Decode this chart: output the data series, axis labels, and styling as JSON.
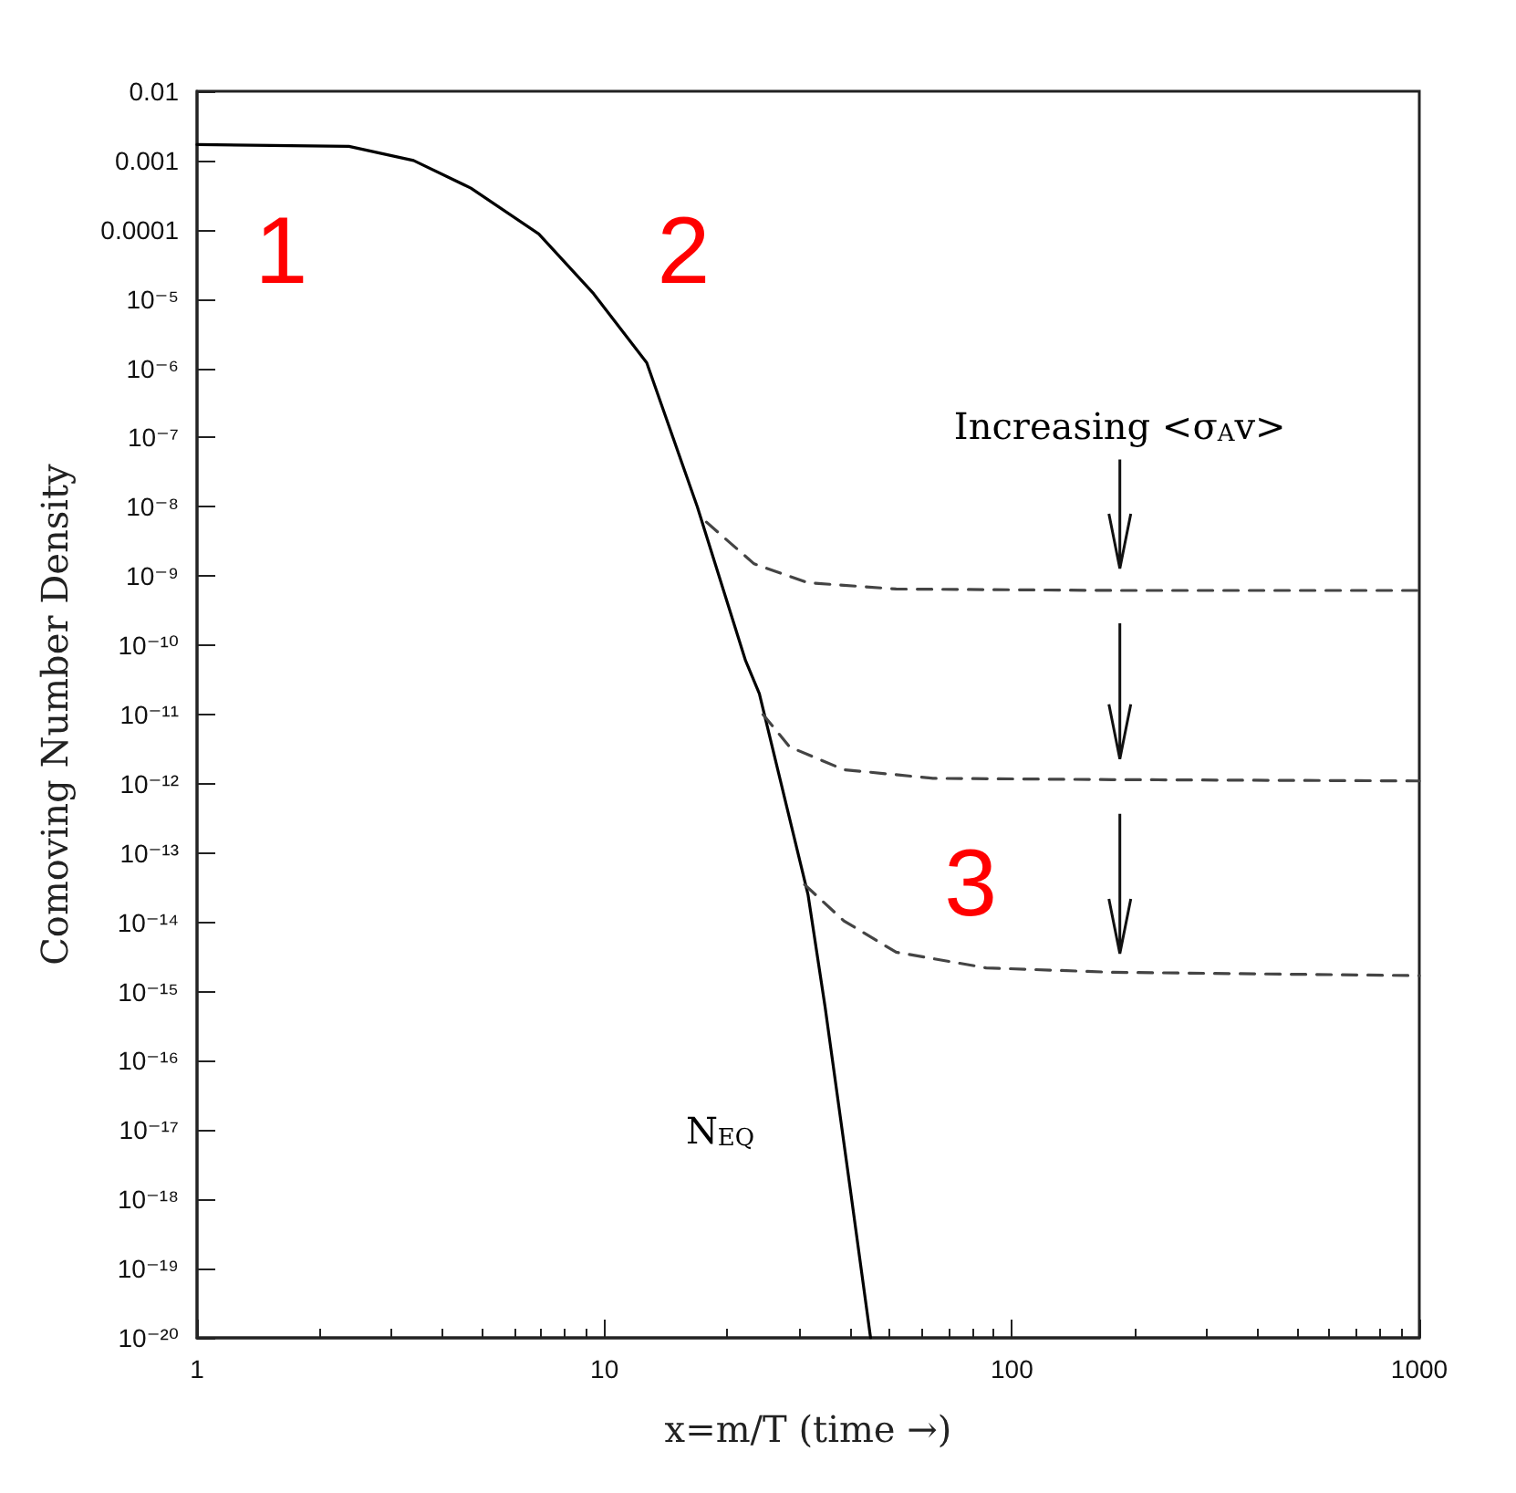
{
  "chart_data": {
    "type": "line",
    "xlabel": "x=m/T (time →)",
    "ylabel": "Comoving Number Density",
    "log": "xy",
    "xlim": [
      1,
      1000
    ],
    "xticks": [
      1,
      10,
      100,
      1000
    ],
    "ylim": [
      1e-20,
      0.01
    ],
    "yticks": [
      0.01,
      0.001,
      0.0001,
      {
        "value": 1e-05,
        "label": "10⁻⁵"
      },
      {
        "value": 1e-06,
        "label": "10⁻⁶"
      },
      {
        "value": 1e-07,
        "label": "10⁻⁷"
      },
      {
        "value": 1e-08,
        "label": "10⁻⁸"
      },
      {
        "value": 1e-09,
        "label": "10⁻⁹"
      },
      {
        "value": 1e-10,
        "label": "10⁻¹⁰"
      },
      {
        "value": 1e-11,
        "label": "10⁻¹¹"
      },
      {
        "value": 1e-12,
        "label": "10⁻¹²"
      },
      {
        "value": 1e-13,
        "label": "10⁻¹³"
      },
      {
        "value": 1e-14,
        "label": "10⁻¹⁴"
      },
      {
        "value": 1e-15,
        "label": "10⁻¹⁵"
      },
      {
        "value": 1e-16,
        "label": "10⁻¹⁶"
      },
      {
        "value": 1e-17,
        "label": "10⁻¹⁷"
      },
      {
        "value": 1e-18,
        "label": "10⁻¹⁸"
      },
      {
        "value": 1e-19,
        "label": "10⁻¹⁹"
      },
      {
        "value": 1e-20,
        "label": "10⁻²⁰"
      }
    ],
    "grid": false,
    "marker": "none",
    "series": [
      {
        "color": "#000000",
        "line_style": "solid",
        "x": [
          1,
          2.36,
          3.4,
          4.7,
          6.9,
          9.4,
          12.7,
          16.9,
          22.2,
          24,
          31.6,
          34.8,
          40,
          45
        ],
        "values": [
          0.0017,
          0.0016,
          0.001,
          0.0004,
          8.7e-05,
          1.2e-05,
          1.2e-06,
          1e-08,
          6e-11,
          2e-11,
          2.5e-14,
          6e-16,
          1.6e-18,
          1e-20
        ]
      },
      {
        "color": "#444444",
        "line_style": "dashed",
        "x": [
          17.8,
          23.3,
          31.6,
          52,
          176,
          1000
        ],
        "values": [
          6e-09,
          1.5e-09,
          8e-10,
          6.5e-10,
          6.2e-10,
          6.2e-10
        ]
      },
      {
        "color": "#444444",
        "line_style": "dashed",
        "x": [
          24.5,
          28.5,
          38.7,
          64,
          176,
          1000
        ],
        "values": [
          1e-11,
          3.4e-12,
          1.6e-12,
          1.2e-12,
          1.15e-12,
          1.1e-12
        ]
      },
      {
        "color": "#444444",
        "line_style": "dashed",
        "x": [
          31,
          38.7,
          52,
          86.5,
          176,
          1000
        ],
        "values": [
          3.5e-14,
          1.05e-14,
          3.7e-15,
          2.2e-15,
          1.9e-15,
          1.7e-15
        ]
      }
    ],
    "annotations": [
      "1",
      "2",
      "3",
      "Increasing <σ$_{A}$v>",
      "N$_{EQ}$"
    ]
  }
}
